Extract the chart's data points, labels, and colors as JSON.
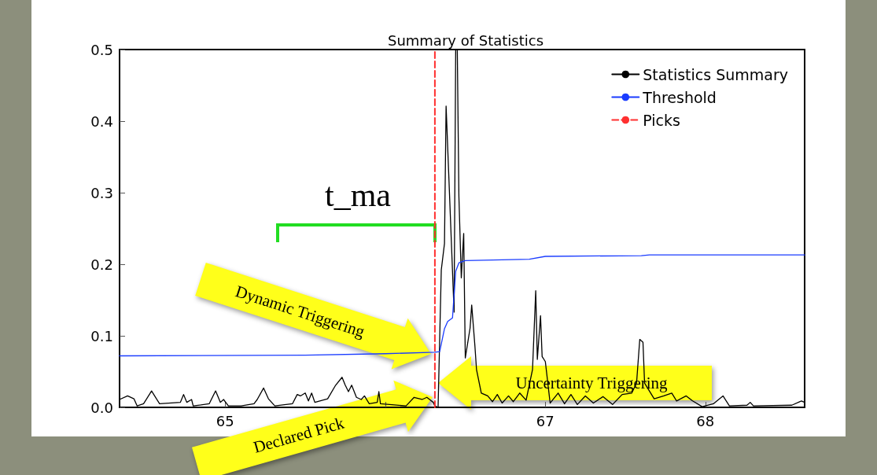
{
  "chart_data": {
    "type": "line",
    "title": "Summary of Statistics",
    "xlim": [
      64.34,
      68.62
    ],
    "xticks": [
      65,
      {
        "value": 66,
        "label": null
      },
      67,
      68
    ],
    "ylim": [
      0,
      0.5
    ],
    "yticks": [
      {
        "value": 0,
        "label": "0.0"
      },
      0.1,
      0.2,
      0.3,
      0.4,
      0.5
    ],
    "grid": false,
    "legend": "top right",
    "marker": "none",
    "line_style": "solid",
    "series": [
      {
        "name": "Statistics Summary",
        "color": "#000000",
        "x": [
          64.34,
          64.39,
          64.43,
          64.45,
          64.49,
          64.54,
          64.59,
          64.72,
          64.74,
          64.76,
          64.79,
          64.8,
          64.9,
          64.94,
          64.97,
          64.99,
          65.02,
          65.1,
          65.18,
          65.2,
          65.24,
          65.27,
          65.31,
          65.42,
          65.45,
          65.47,
          65.5,
          65.52,
          65.54,
          65.56,
          65.64,
          65.69,
          65.73,
          65.75,
          65.77,
          65.79,
          65.82,
          65.85,
          65.87,
          65.9,
          65.95,
          65.96,
          65.97,
          66.13,
          66.18,
          66.23,
          66.26,
          66.3,
          66.31,
          66.33,
          66.35,
          66.37,
          66.38,
          66.43,
          66.44,
          66.45,
          66.46,
          66.475,
          66.49,
          66.5,
          66.52,
          66.53,
          66.54,
          66.56,
          66.57,
          66.6,
          66.64,
          66.67,
          66.7,
          66.73,
          66.77,
          66.8,
          66.84,
          66.88,
          66.92,
          66.94,
          66.95,
          66.97,
          66.98,
          67.0,
          67.03,
          67.08,
          67.12,
          67.16,
          67.2,
          67.25,
          67.3,
          67.36,
          67.42,
          67.48,
          67.54,
          67.57,
          67.59,
          67.61,
          67.62,
          67.68,
          67.74,
          67.79,
          67.82,
          67.88,
          67.92,
          67.98,
          68.05,
          68.11,
          68.15,
          68.26,
          68.28,
          68.3,
          68.54,
          68.6,
          68.62
        ],
        "values": [
          0.011,
          0.016,
          0.012,
          0.002,
          0.005,
          0.023,
          0.005,
          0.007,
          0.018,
          0.007,
          0.011,
          0.002,
          0.005,
          0.023,
          0.007,
          0.011,
          0.002,
          0.002,
          0.005,
          0.011,
          0.027,
          0.012,
          0.002,
          0.005,
          0.018,
          0.016,
          0.02,
          0.009,
          0.02,
          0.007,
          0.012,
          0.031,
          0.042,
          0.031,
          0.022,
          0.031,
          0.014,
          0.011,
          0.016,
          0.005,
          0.007,
          0.022,
          0.005,
          0.002,
          0.014,
          0.011,
          0.014,
          0.007,
          0.002,
          0.0,
          0.192,
          0.229,
          0.421,
          0.133,
          0.5,
          0.5,
          0.295,
          0.181,
          0.243,
          0.069,
          0.097,
          0.111,
          0.143,
          0.086,
          0.053,
          0.02,
          0.016,
          0.008,
          0.018,
          0.006,
          0.016,
          0.008,
          0.02,
          0.01,
          0.053,
          0.163,
          0.067,
          0.128,
          0.071,
          0.064,
          0.006,
          0.02,
          0.005,
          0.018,
          0.004,
          0.016,
          0.006,
          0.015,
          0.004,
          0.018,
          0.02,
          0.034,
          0.095,
          0.091,
          0.034,
          0.012,
          0.016,
          0.02,
          0.009,
          0.016,
          0.009,
          0.001,
          0.005,
          0.016,
          0.002,
          0.003,
          0.007,
          0.002,
          0.003,
          0.009,
          0.007
        ]
      },
      {
        "name": "Threshold",
        "color": "#1a3cff",
        "x": [
          64.34,
          65.5,
          66.0,
          66.31,
          66.34,
          66.37,
          66.39,
          66.42,
          66.44,
          66.46,
          66.5,
          66.9,
          67.0,
          67.6,
          67.65,
          68.62
        ],
        "values": [
          0.072,
          0.073,
          0.075,
          0.077,
          0.078,
          0.11,
          0.12,
          0.125,
          0.19,
          0.202,
          0.205,
          0.207,
          0.211,
          0.212,
          0.213,
          0.213
        ]
      },
      {
        "name": "Picks",
        "color": "#ff3030",
        "line_style": "dashed",
        "x": [
          66.31,
          66.31
        ],
        "values": [
          0,
          0.5
        ]
      }
    ],
    "annotations": [
      "t_ma",
      "Dynamic Triggering",
      "Uncertainty Triggering",
      "Declared Pick"
    ]
  }
}
